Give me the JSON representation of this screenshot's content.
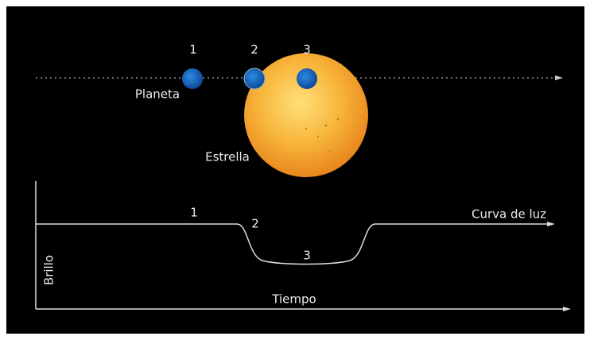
{
  "transit": {
    "positions": [
      "1",
      "2",
      "3"
    ],
    "planet_label": "Planeta",
    "star_label": "Estrella"
  },
  "light_curve": {
    "positions": [
      "1",
      "2",
      "3"
    ],
    "curve_label": "Curva de luz",
    "y_axis_label": "Brillo",
    "x_axis_label": "Tiempo"
  }
}
